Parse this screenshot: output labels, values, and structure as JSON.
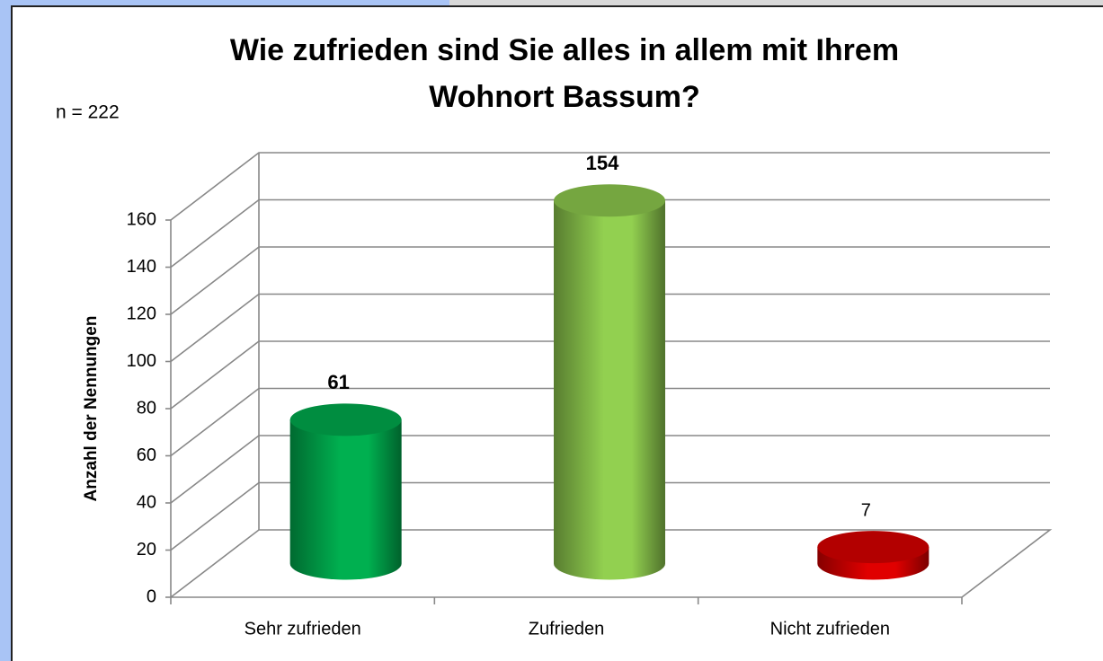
{
  "chart_data": {
    "type": "bar3d",
    "title": "Wie zufrieden sind Sie alles in allem mit Ihrem Wohnort Bassum?",
    "annotation": "n = 222",
    "y_label": "Anzahl der Nennungen",
    "categories": [
      "Sehr zufrieden",
      "Zufrieden",
      "Nicht zufrieden"
    ],
    "values": [
      61,
      154,
      7
    ],
    "colors": [
      "#00b050",
      "#92d050",
      "#e00000"
    ],
    "ylim": [
      0,
      160
    ],
    "yticks": [
      0,
      20,
      40,
      60,
      80,
      100,
      120,
      140,
      160
    ],
    "grid": true
  }
}
